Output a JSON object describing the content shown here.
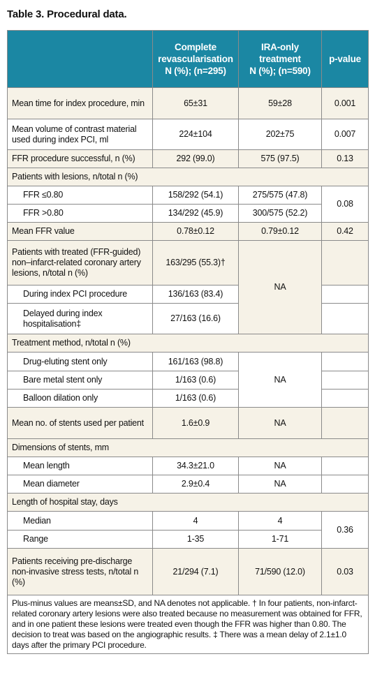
{
  "title": "Table 3. Procedural data.",
  "table": {
    "header": [
      [
        "Complete",
        "revascularisation",
        "N (%); (n=295)"
      ],
      [
        "IRA-only",
        "treatment",
        "N (%); (n=590)"
      ],
      [
        "p-value"
      ]
    ],
    "rows": [
      [
        "Mean time for index procedure, min",
        "65±31",
        "59±28",
        "0.001"
      ],
      [
        "Mean volume of contrast material used during index PCI, ml",
        "224±104",
        "202±75",
        "0.007"
      ],
      [
        "FFR procedure successful, n (%)",
        "292 (99.0)",
        "575 (97.5)",
        "0.13"
      ],
      [
        "Patients with lesions, n/total n (%)"
      ],
      [
        "FFR ≤0.80",
        "158/292 (54.1)",
        "275/575 (47.8)",
        "0.08"
      ],
      [
        "FFR >0.80",
        "134/292 (45.9)",
        "300/575 (52.2)"
      ],
      [
        "Mean FFR value",
        "0.78±0.12",
        "0.79±0.12",
        "0.42"
      ],
      [
        "Patients with treated (FFR-guided) non–infarct-related coronary artery lesions, n/total n (%)",
        "163/295 (55.3)†",
        "NA"
      ],
      [
        "During index PCI procedure",
        "136/163 (83.4)"
      ],
      [
        "Delayed during index hospitalisation‡",
        "27/163 (16.6)"
      ],
      [
        "Treatment method, n/total n (%)"
      ],
      [
        "Drug-eluting stent only",
        "161/163 (98.8)",
        "NA"
      ],
      [
        "Bare metal stent only",
        "1/163 (0.6)"
      ],
      [
        "Balloon dilation only",
        "1/163 (0.6)"
      ],
      [
        "Mean no. of stents used per patient",
        "1.6±0.9",
        "NA"
      ],
      [
        "Dimensions of stents, mm"
      ],
      [
        "Mean length",
        "34.3±21.0",
        "NA"
      ],
      [
        "Mean diameter",
        "2.9±0.4",
        "NA"
      ],
      [
        "Length of hospital stay, days"
      ],
      [
        "Median",
        "4",
        "4",
        "0.36"
      ],
      [
        "Range",
        "1-35",
        "1-71"
      ],
      [
        "Patients receiving pre-discharge non-invasive stress tests, n/total n (%)",
        "21/294 (7.1)",
        "71/590 (12.0)",
        "0.03"
      ]
    ],
    "footnote": "Plus-minus values are means±SD, and NA denotes not applicable. † In four patients, non-infarct-related coronary artery lesions were also treated because no measurement was obtained for FFR, and in one patient these lesions were treated even though the FFR was higher than 0.80. The decision to treat was based on the angiographic results. ‡ There was a mean delay of 2.1±1.0 days after the primary PCI procedure."
  }
}
